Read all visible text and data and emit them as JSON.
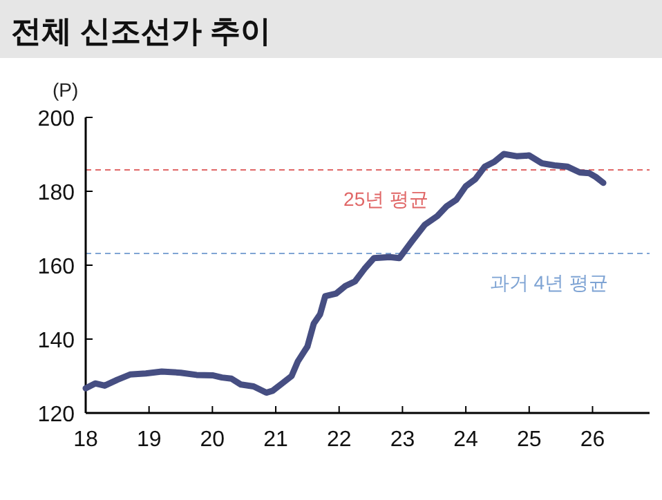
{
  "chart_data": {
    "type": "line",
    "title": "전체 신조선가 추이",
    "ylabel": "(P)",
    "x": [
      18.0,
      18.15,
      18.3,
      18.5,
      18.7,
      18.95,
      19.2,
      19.5,
      19.75,
      20.0,
      20.15,
      20.3,
      20.45,
      20.65,
      20.85,
      20.95,
      21.1,
      21.25,
      21.35,
      21.5,
      21.6,
      21.7,
      21.78,
      21.95,
      22.1,
      22.25,
      22.4,
      22.55,
      22.8,
      22.95,
      23.15,
      23.35,
      23.55,
      23.7,
      23.85,
      24.0,
      24.15,
      24.3,
      24.45,
      24.6,
      24.8,
      25.0,
      25.2,
      25.4,
      25.6,
      25.8,
      25.95,
      26.05,
      26.17
    ],
    "series": [
      {
        "color": "#464e82",
        "values": [
          126.7,
          128,
          127.4,
          129,
          130.4,
          130.7,
          131.2,
          130.9,
          130.3,
          130.2,
          129.6,
          129.3,
          127.7,
          127.2,
          125.5,
          126,
          128,
          130,
          134,
          138,
          144.2,
          146.7,
          151.6,
          152.3,
          154.4,
          155.6,
          159,
          161.9,
          162.2,
          161.9,
          166.5,
          170.9,
          173.3,
          176,
          177.7,
          181.4,
          183.3,
          186.7,
          188,
          190.1,
          189.5,
          189.7,
          187.6,
          187,
          186.7,
          185.1,
          184.9,
          183.9,
          182.3
        ]
      }
    ],
    "xlim": [
      18,
      26.9
    ],
    "xticks": [
      18,
      19,
      20,
      21,
      22,
      23,
      24,
      25,
      26
    ],
    "ylim": [
      120,
      200
    ],
    "yticks": [
      120,
      140,
      160,
      180,
      200
    ],
    "grid": false,
    "line_style": "solid",
    "marker": "none",
    "ref_lines": [
      {
        "axis": "y",
        "value": 185.8,
        "label": "25년 평균",
        "color": "#e06666",
        "line_style": "dashed"
      },
      {
        "axis": "y",
        "value": 163.2,
        "label": "과거 4년 평균",
        "color": "#7fa4d4",
        "line_style": "dashed"
      }
    ]
  }
}
